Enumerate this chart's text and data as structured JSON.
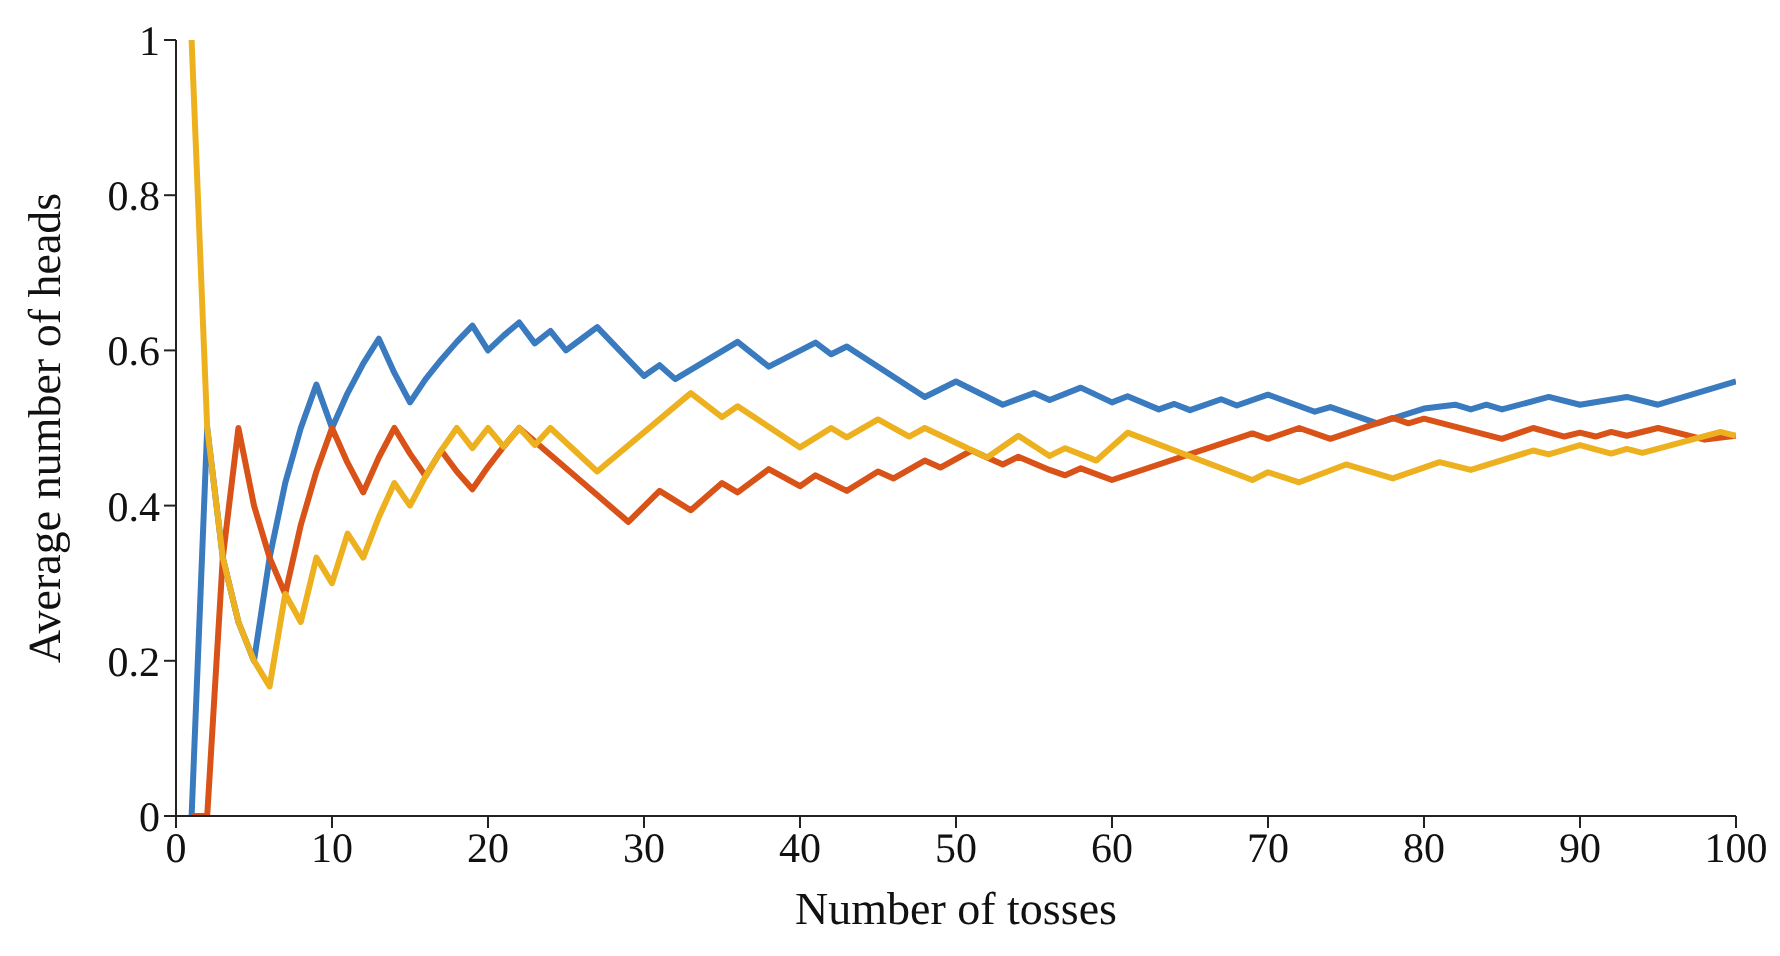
{
  "chart_data": {
    "type": "line",
    "xlabel": "Number of tosses",
    "ylabel": "Average number of heads",
    "xlim": [
      0,
      100
    ],
    "ylim": [
      0,
      1
    ],
    "xticks": [
      0,
      10,
      20,
      30,
      40,
      50,
      60,
      70,
      80,
      90,
      100
    ],
    "yticks": [
      0,
      0.2,
      0.4,
      0.6,
      0.8,
      1
    ],
    "marker": "none",
    "line_style": "solid",
    "series": [
      {
        "color": "#3a7bbf",
        "x": [
          1,
          2,
          3,
          4,
          5,
          6,
          7,
          8,
          9,
          10,
          11,
          12,
          13,
          14,
          15,
          16,
          17,
          18,
          19,
          20,
          21,
          22,
          23,
          24,
          25,
          26,
          27,
          30,
          31,
          32,
          36,
          38,
          41,
          42,
          43,
          48,
          50,
          53,
          55,
          56,
          58,
          60,
          61,
          63,
          64,
          65,
          67,
          68,
          70,
          73,
          74,
          77,
          80,
          82,
          83,
          84,
          85,
          88,
          90,
          93,
          95,
          100
        ],
        "values": [
          0,
          0.5,
          0.333,
          0.25,
          0.2,
          0.333,
          0.429,
          0.5,
          0.556,
          0.5,
          0.545,
          0.583,
          0.615,
          0.571,
          0.533,
          0.563,
          0.588,
          0.611,
          0.632,
          0.6,
          0.619,
          0.636,
          0.609,
          0.625,
          0.6,
          0.615,
          0.63,
          0.567,
          0.581,
          0.563,
          0.611,
          0.579,
          0.61,
          0.595,
          0.605,
          0.54,
          0.56,
          0.53,
          0.545,
          0.536,
          0.552,
          0.533,
          0.541,
          0.524,
          0.531,
          0.523,
          0.537,
          0.529,
          0.543,
          0.521,
          0.527,
          0.506,
          0.525,
          0.53,
          0.524,
          0.53,
          0.524,
          0.54,
          0.53,
          0.54,
          0.53,
          0.56
        ]
      },
      {
        "color": "#d95319",
        "x": [
          1,
          2,
          3,
          4,
          5,
          6,
          7,
          8,
          9,
          10,
          11,
          12,
          13,
          14,
          15,
          16,
          17,
          18,
          19,
          20,
          21,
          22,
          29,
          31,
          33,
          35,
          36,
          38,
          40,
          41,
          43,
          45,
          46,
          48,
          49,
          51,
          52,
          53,
          54,
          56,
          57,
          58,
          60,
          69,
          70,
          72,
          74,
          78,
          79,
          80,
          85,
          87,
          89,
          90,
          91,
          92,
          93,
          95,
          98,
          100
        ],
        "values": [
          0,
          0,
          0.333,
          0.5,
          0.4,
          0.333,
          0.286,
          0.375,
          0.444,
          0.5,
          0.455,
          0.417,
          0.462,
          0.5,
          0.467,
          0.438,
          0.471,
          0.444,
          0.421,
          0.45,
          0.476,
          0.5,
          0.379,
          0.419,
          0.394,
          0.429,
          0.417,
          0.447,
          0.425,
          0.439,
          0.419,
          0.444,
          0.435,
          0.458,
          0.449,
          0.471,
          0.462,
          0.453,
          0.463,
          0.446,
          0.439,
          0.448,
          0.433,
          0.493,
          0.486,
          0.5,
          0.486,
          0.513,
          0.506,
          0.512,
          0.486,
          0.5,
          0.489,
          0.494,
          0.489,
          0.495,
          0.49,
          0.5,
          0.485,
          0.49
        ]
      },
      {
        "color": "#edb120",
        "x": [
          1,
          2,
          3,
          4,
          5,
          6,
          7,
          8,
          9,
          10,
          11,
          12,
          13,
          14,
          15,
          16,
          17,
          18,
          19,
          20,
          21,
          22,
          23,
          24,
          27,
          33,
          35,
          36,
          40,
          42,
          43,
          45,
          47,
          48,
          52,
          54,
          56,
          57,
          59,
          61,
          69,
          70,
          72,
          75,
          78,
          81,
          83,
          87,
          88,
          90,
          92,
          93,
          94,
          99,
          100
        ],
        "values": [
          1,
          0.5,
          0.333,
          0.25,
          0.2,
          0.167,
          0.286,
          0.25,
          0.333,
          0.3,
          0.364,
          0.333,
          0.385,
          0.429,
          0.4,
          0.438,
          0.471,
          0.5,
          0.474,
          0.5,
          0.476,
          0.5,
          0.478,
          0.5,
          0.444,
          0.545,
          0.514,
          0.528,
          0.475,
          0.5,
          0.488,
          0.511,
          0.489,
          0.5,
          0.462,
          0.49,
          0.464,
          0.474,
          0.458,
          0.494,
          0.433,
          0.443,
          0.43,
          0.453,
          0.435,
          0.456,
          0.446,
          0.471,
          0.466,
          0.478,
          0.467,
          0.473,
          0.468,
          0.495,
          0.49
        ]
      }
    ]
  }
}
